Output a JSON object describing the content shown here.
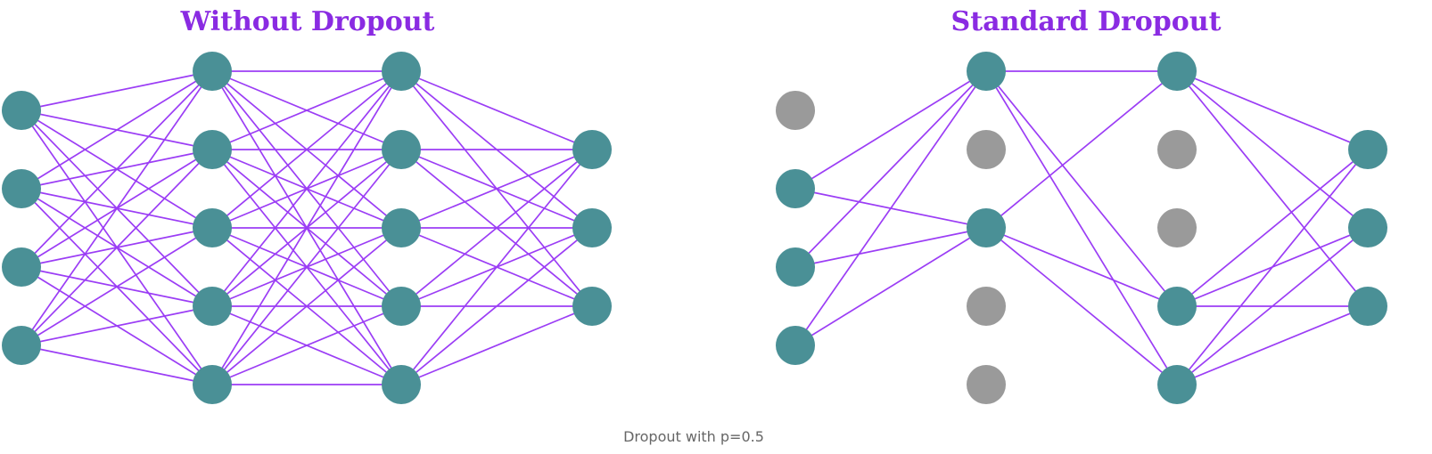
{
  "colors": {
    "title": "#8a2be2",
    "edge": "#9b3df5",
    "active_node": "#4a9096",
    "dropped_node": "#9a9a9a",
    "caption": "#666666",
    "background": "#ffffff"
  },
  "panels": [
    {
      "title": "Without Dropout",
      "layers": [
        [
          "active",
          "active",
          "active",
          "active"
        ],
        [
          "active",
          "active",
          "active",
          "active",
          "active"
        ],
        [
          "active",
          "active",
          "active",
          "active",
          "active"
        ],
        [
          "active",
          "active",
          "active"
        ]
      ]
    },
    {
      "title": "Standard Dropout",
      "layers": [
        [
          "dropped",
          "active",
          "active",
          "active"
        ],
        [
          "active",
          "dropped",
          "active",
          "dropped",
          "dropped"
        ],
        [
          "active",
          "dropped",
          "dropped",
          "active",
          "active"
        ],
        [
          "active",
          "active",
          "active"
        ]
      ]
    }
  ],
  "caption": "Dropout with p=0.5"
}
